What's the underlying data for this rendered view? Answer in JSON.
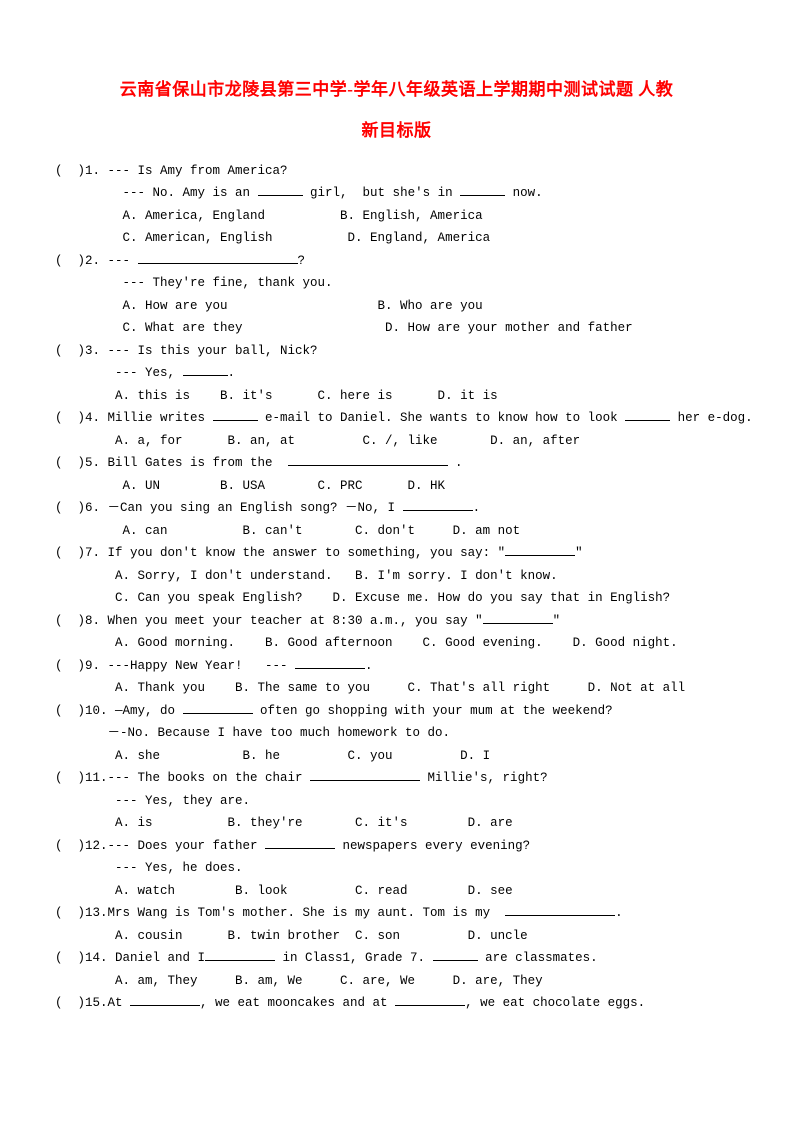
{
  "title_line1": "云南省保山市龙陵县第三中学-学年八年级英语上学期期中测试试题 人教",
  "title_line2": "新目标版",
  "q1": {
    "l1": "(  )1. --- Is Amy from America?",
    "l2": "         --- No. Amy is an ",
    "l2b": " girl,  but she's in ",
    "l2c": " now.",
    "a": "         A. America, England          B. English, America",
    "b": "         C. American, English          D. England, America"
  },
  "q2": {
    "l1": "(  )2. --- ",
    "l1b": "?",
    "l2": "         --- They're fine, thank you.",
    "a": "         A. How are you                    B. Who are you",
    "b": "         C. What are they                   D. How are your mother and father"
  },
  "q3": {
    "l1": "(  )3. --- Is this your ball, Nick?",
    "l2": "        --- Yes, ",
    "l2b": ".",
    "a": "        A. this is    B. it's      C. here is      D. it is"
  },
  "q4": {
    "l1": "(  )4. Millie writes ",
    "l1b": " e-mail to Daniel. She wants to know how to look ",
    "l1c": " her e-dog.",
    "a": "        A. a, for      B. an, at         C. /, like       D. an, after"
  },
  "q5": {
    "l1": "(  )5. Bill Gates is from the  ",
    "l1b": " .",
    "a": "         A. UN        B. USA       C. PRC      D. HK"
  },
  "q6": {
    "l1": "(  )6. －Can you sing an English song? －No, I ",
    "l1b": ".",
    "a": "         A. can          B. can't       C. don't     D. am not"
  },
  "q7": {
    "l1": "(  )7. If you don't know the answer to something, you say: \"",
    "l1b": "\"",
    "a": "        A. Sorry, I don't understand.   B. I'm sorry. I don't know.",
    "b": "        C. Can you speak English?    D. Excuse me. How do you say that in English?"
  },
  "q8": {
    "l1": "(  )8. When you meet your teacher at 8:30 a.m., you say \"",
    "l1b": "\"",
    "a": "        A. Good morning.    B. Good afternoon    C. Good evening.    D. Good night."
  },
  "q9": {
    "l1": "(  )9. ---Happy New Year!   --- ",
    "l1b": ".",
    "a": "        A. Thank you    B. The same to you     C. That's all right     D. Not at all"
  },
  "q10": {
    "l1": "(  )10. —Amy, do ",
    "l1b": " often go shopping with your mum at the weekend?",
    "l2": "       －-No. Because I have too much homework to do.",
    "a": "        A. she           B. he         C. you         D. I"
  },
  "q11": {
    "l1": "(  )11.--- The books on the chair ",
    "l1b": " Millie's, right?",
    "l2": "        --- Yes, they are.",
    "a": "        A. is          B. they're       C. it's        D. are"
  },
  "q12": {
    "l1": "(  )12.--- Does your father ",
    "l1b": " newspapers every evening?",
    "l2": "        --- Yes, he does.",
    "a": "        A. watch        B. look         C. read        D. see"
  },
  "q13": {
    "l1": "(  )13.Mrs Wang is Tom's mother. She is my aunt. Tom is my  ",
    "l1b": ".",
    "a": "        A. cousin      B. twin brother  C. son         D. uncle"
  },
  "q14": {
    "l1": "(  )14. Daniel and I",
    "l1b": " in Class1, Grade 7. ",
    "l1c": " are classmates.",
    "a": "        A. am, They     B. am, We     C. are, We     D. are, They"
  },
  "q15": {
    "l1": "(  )15.At ",
    "l1b": ", we eat mooncakes and at ",
    "l1c": ", we eat chocolate eggs."
  }
}
